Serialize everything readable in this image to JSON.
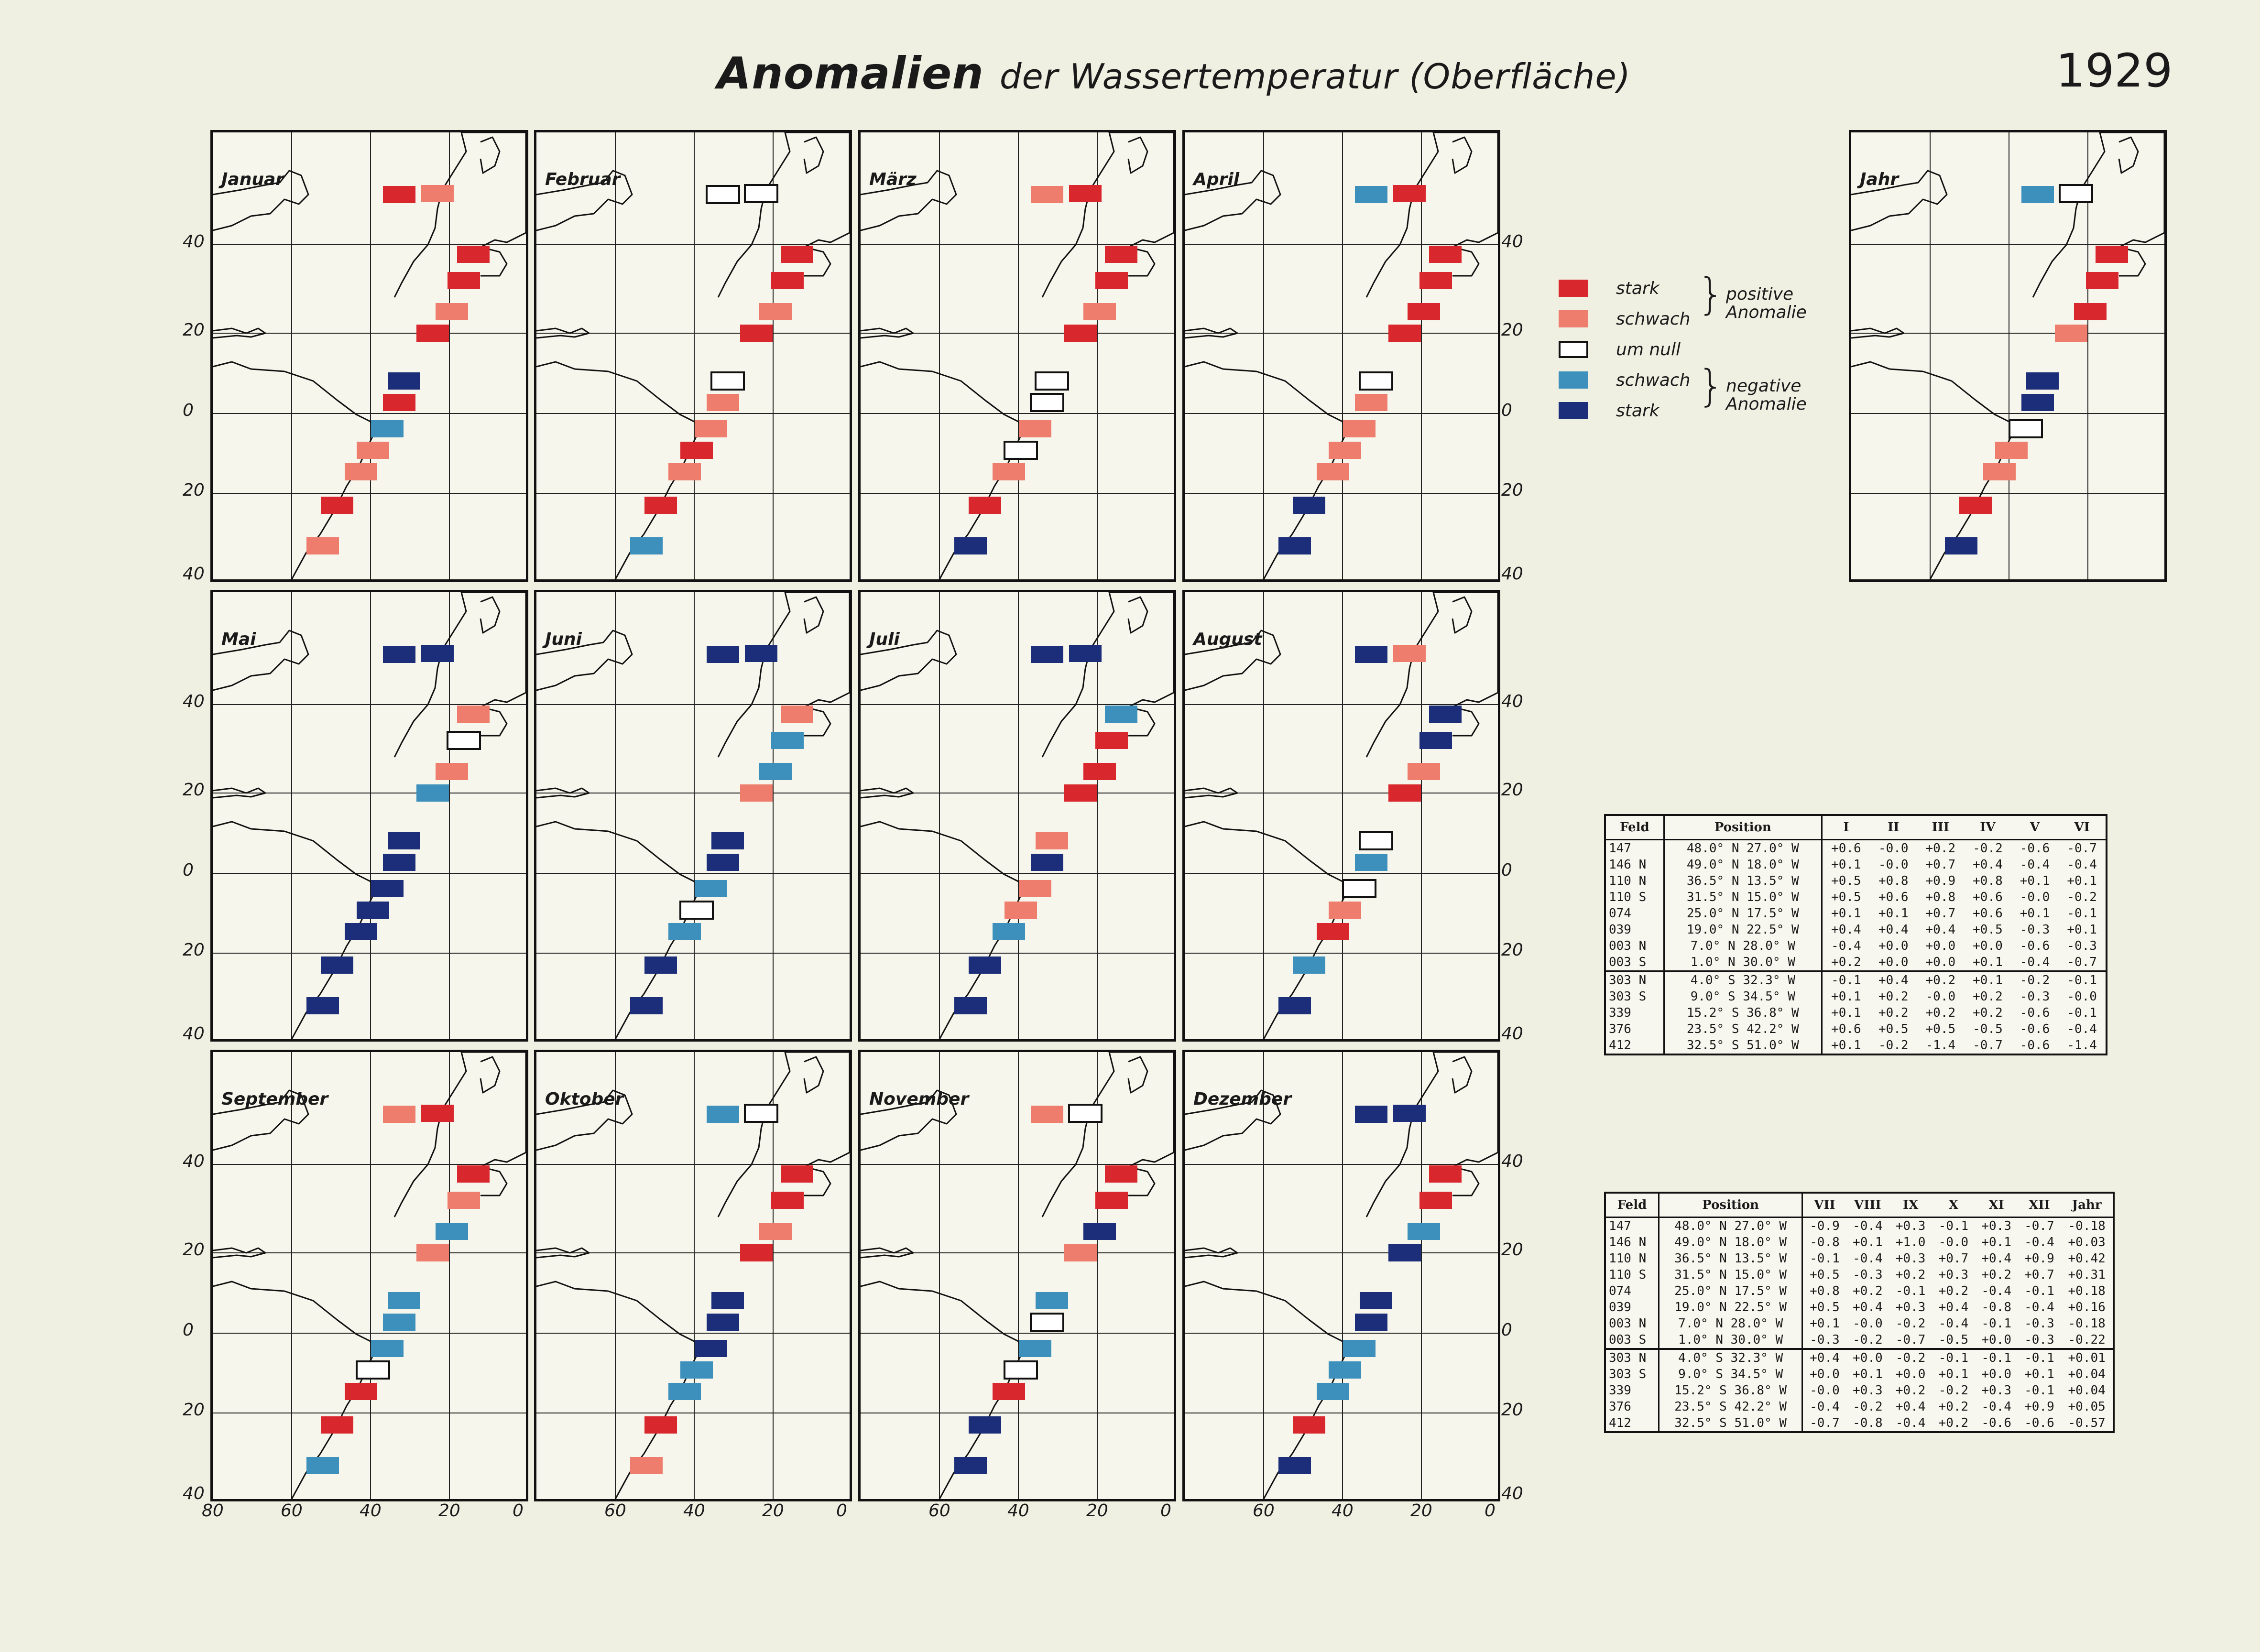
{
  "title": {
    "main": "Anomalien",
    "sub": "der Wassertemperatur (Oberfläche)"
  },
  "year": "1929",
  "colors": {
    "strong_pos": "#d9272e",
    "weak_pos": "#ef7d6d",
    "null": "#ffffff",
    "weak_neg": "#3d8fbc",
    "strong_neg": "#1c2d79"
  },
  "axis": {
    "lat_labels": [
      "40",
      "20",
      "0",
      "20",
      "40"
    ],
    "lon_labels": [
      "80",
      "60",
      "40",
      "20",
      "0"
    ]
  },
  "legend": {
    "items": [
      {
        "label": "stark",
        "cls": "strong_pos"
      },
      {
        "label": "schwach",
        "cls": "weak_pos"
      },
      {
        "label": "um null",
        "cls": "null"
      },
      {
        "label": "schwach",
        "cls": "weak_neg"
      },
      {
        "label": "stark",
        "cls": "strong_neg"
      }
    ],
    "positive": "positive Anomalie",
    "negative": "negative Anomalie"
  },
  "maps": [
    {
      "name": "Januar",
      "cells": [
        "strong_pos",
        "weak_pos",
        "strong_pos",
        "strong_pos",
        "weak_pos",
        "strong_pos",
        "strong_neg",
        "strong_pos",
        "weak_neg",
        "weak_pos",
        "weak_pos",
        "strong_pos",
        "weak_pos"
      ]
    },
    {
      "name": "Februar",
      "cells": [
        "null",
        "null",
        "strong_pos",
        "strong_pos",
        "weak_pos",
        "strong_pos",
        "null",
        "weak_pos",
        "weak_pos",
        "strong_pos",
        "weak_pos",
        "strong_pos",
        "weak_neg"
      ]
    },
    {
      "name": "März",
      "cells": [
        "weak_pos",
        "strong_pos",
        "strong_pos",
        "strong_pos",
        "weak_pos",
        "strong_pos",
        "null",
        "null",
        "weak_pos",
        "null",
        "weak_pos",
        "strong_pos",
        "strong_neg"
      ]
    },
    {
      "name": "April",
      "cells": [
        "weak_neg",
        "strong_pos",
        "strong_pos",
        "strong_pos",
        "strong_pos",
        "strong_pos",
        "null",
        "weak_pos",
        "weak_pos",
        "weak_pos",
        "weak_pos",
        "strong_neg",
        "strong_neg"
      ]
    },
    {
      "name": "Mai",
      "cells": [
        "strong_neg",
        "strong_neg",
        "weak_pos",
        "null",
        "weak_pos",
        "weak_neg",
        "strong_neg",
        "strong_neg",
        "strong_neg",
        "strong_neg",
        "strong_neg",
        "strong_neg",
        "strong_neg"
      ]
    },
    {
      "name": "Juni",
      "cells": [
        "strong_neg",
        "strong_neg",
        "weak_pos",
        "weak_neg",
        "weak_neg",
        "weak_pos",
        "strong_neg",
        "strong_neg",
        "weak_neg",
        "null",
        "weak_neg",
        "strong_neg",
        "strong_neg"
      ]
    },
    {
      "name": "Juli",
      "cells": [
        "strong_neg",
        "strong_neg",
        "weak_neg",
        "strong_pos",
        "strong_pos",
        "strong_pos",
        "weak_pos",
        "strong_neg",
        "weak_pos",
        "weak_pos",
        "weak_neg",
        "strong_neg",
        "strong_neg"
      ]
    },
    {
      "name": "August",
      "cells": [
        "strong_neg",
        "weak_pos",
        "strong_neg",
        "strong_neg",
        "weak_pos",
        "strong_pos",
        "null",
        "weak_neg",
        "null",
        "weak_pos",
        "strong_pos",
        "weak_neg",
        "strong_neg"
      ]
    },
    {
      "name": "September",
      "cells": [
        "weak_pos",
        "strong_pos",
        "strong_pos",
        "weak_pos",
        "weak_neg",
        "weak_pos",
        "weak_neg",
        "weak_neg",
        "weak_neg",
        "null",
        "strong_pos",
        "strong_pos",
        "weak_neg"
      ]
    },
    {
      "name": "Oktober",
      "cells": [
        "weak_neg",
        "null",
        "strong_pos",
        "strong_pos",
        "weak_pos",
        "strong_pos",
        "strong_neg",
        "strong_neg",
        "strong_neg",
        "weak_neg",
        "weak_neg",
        "strong_pos",
        "weak_pos"
      ]
    },
    {
      "name": "November",
      "cells": [
        "weak_pos",
        "null",
        "strong_pos",
        "strong_pos",
        "strong_neg",
        "weak_pos",
        "weak_neg",
        "null",
        "weak_neg",
        "null",
        "strong_pos",
        "strong_neg",
        "strong_neg"
      ]
    },
    {
      "name": "Dezember",
      "cells": [
        "strong_neg",
        "strong_neg",
        "strong_pos",
        "strong_pos",
        "weak_neg",
        "strong_neg",
        "strong_neg",
        "strong_neg",
        "weak_neg",
        "weak_neg",
        "weak_neg",
        "strong_pos",
        "strong_neg"
      ]
    },
    {
      "name": "Jahr",
      "cells": [
        "weak_neg",
        "null",
        "strong_pos",
        "strong_pos",
        "strong_pos",
        "weak_pos",
        "strong_neg",
        "strong_neg",
        "null",
        "weak_pos",
        "weak_pos",
        "strong_pos",
        "strong_neg"
      ]
    }
  ],
  "table1": {
    "headers": [
      "Feld",
      "Position",
      "I",
      "II",
      "III",
      "IV",
      "V",
      "VI"
    ],
    "rows": [
      [
        "147",
        "48.0° N 27.0° W",
        "+0.6",
        "-0.0",
        "+0.2",
        "-0.2",
        "-0.6",
        "-0.7"
      ],
      [
        "146 N",
        "49.0° N 18.0° W",
        "+0.1",
        "-0.0",
        "+0.7",
        "+0.4",
        "-0.4",
        "-0.4"
      ],
      [
        "110 N",
        "36.5° N 13.5° W",
        "+0.5",
        "+0.8",
        "+0.9",
        "+0.8",
        "+0.1",
        "+0.1"
      ],
      [
        "110 S",
        "31.5° N 15.0° W",
        "+0.5",
        "+0.6",
        "+0.8",
        "+0.6",
        "-0.0",
        "-0.2"
      ],
      [
        "074",
        "25.0° N 17.5° W",
        "+0.1",
        "+0.1",
        "+0.7",
        "+0.6",
        "+0.1",
        "-0.1"
      ],
      [
        "039",
        "19.0° N 22.5° W",
        "+0.4",
        "+0.4",
        "+0.4",
        "+0.5",
        "-0.3",
        "+0.1"
      ],
      [
        "003 N",
        "7.0° N 28.0° W",
        "-0.4",
        "+0.0",
        "+0.0",
        "+0.0",
        "-0.6",
        "-0.3"
      ],
      [
        "003 S",
        "1.0° N 30.0° W",
        "+0.2",
        "+0.0",
        "+0.0",
        "+0.1",
        "-0.4",
        "-0.7"
      ],
      [
        "303 N",
        "4.0° S 32.3° W",
        "-0.1",
        "+0.4",
        "+0.2",
        "+0.1",
        "-0.2",
        "-0.1"
      ],
      [
        "303 S",
        "9.0° S 34.5° W",
        "+0.1",
        "+0.2",
        "-0.0",
        "+0.2",
        "-0.3",
        "-0.0"
      ],
      [
        "339",
        "15.2° S 36.8° W",
        "+0.1",
        "+0.2",
        "+0.2",
        "+0.2",
        "-0.6",
        "-0.1"
      ],
      [
        "376",
        "23.5° S 42.2° W",
        "+0.6",
        "+0.5",
        "+0.5",
        "-0.5",
        "-0.6",
        "-0.4"
      ],
      [
        "412",
        "32.5° S 51.0° W",
        "+0.1",
        "-0.2",
        "-1.4",
        "-0.7",
        "-0.6",
        "-1.4"
      ]
    ]
  },
  "table2": {
    "headers": [
      "Feld",
      "Position",
      "VII",
      "VIII",
      "IX",
      "X",
      "XI",
      "XII",
      "Jahr"
    ],
    "rows": [
      [
        "147",
        "48.0° N 27.0° W",
        "-0.9",
        "-0.4",
        "+0.3",
        "-0.1",
        "+0.3",
        "-0.7",
        "-0.18"
      ],
      [
        "146 N",
        "49.0° N 18.0° W",
        "-0.8",
        "+0.1",
        "+1.0",
        "-0.0",
        "+0.1",
        "-0.4",
        "+0.03"
      ],
      [
        "110 N",
        "36.5° N 13.5° W",
        "-0.1",
        "-0.4",
        "+0.3",
        "+0.7",
        "+0.4",
        "+0.9",
        "+0.42"
      ],
      [
        "110 S",
        "31.5° N 15.0° W",
        "+0.5",
        "-0.3",
        "+0.2",
        "+0.3",
        "+0.2",
        "+0.7",
        "+0.31"
      ],
      [
        "074",
        "25.0° N 17.5° W",
        "+0.8",
        "+0.2",
        "-0.1",
        "+0.2",
        "-0.4",
        "-0.1",
        "+0.18"
      ],
      [
        "039",
        "19.0° N 22.5° W",
        "+0.5",
        "+0.4",
        "+0.3",
        "+0.4",
        "-0.8",
        "-0.4",
        "+0.16"
      ],
      [
        "003 N",
        "7.0° N 28.0° W",
        "+0.1",
        "-0.0",
        "-0.2",
        "-0.4",
        "-0.1",
        "-0.3",
        "-0.18"
      ],
      [
        "003 S",
        "1.0° N 30.0° W",
        "-0.3",
        "-0.2",
        "-0.7",
        "-0.5",
        "+0.0",
        "-0.3",
        "-0.22"
      ],
      [
        "303 N",
        "4.0° S 32.3° W",
        "+0.4",
        "+0.0",
        "-0.2",
        "-0.1",
        "-0.1",
        "-0.1",
        "+0.01"
      ],
      [
        "303 S",
        "9.0° S 34.5° W",
        "+0.0",
        "+0.1",
        "+0.0",
        "+0.1",
        "+0.0",
        "+0.1",
        "+0.04"
      ],
      [
        "339",
        "15.2° S 36.8° W",
        "-0.0",
        "+0.3",
        "+0.2",
        "-0.2",
        "+0.3",
        "-0.1",
        "+0.04"
      ],
      [
        "376",
        "23.5° S 42.2° W",
        "-0.4",
        "-0.2",
        "+0.4",
        "+0.2",
        "-0.4",
        "+0.9",
        "+0.05"
      ],
      [
        "412",
        "32.5° S 51.0° W",
        "-0.7",
        "-0.8",
        "-0.4",
        "+0.2",
        "-0.6",
        "-0.6",
        "-0.57"
      ]
    ]
  }
}
